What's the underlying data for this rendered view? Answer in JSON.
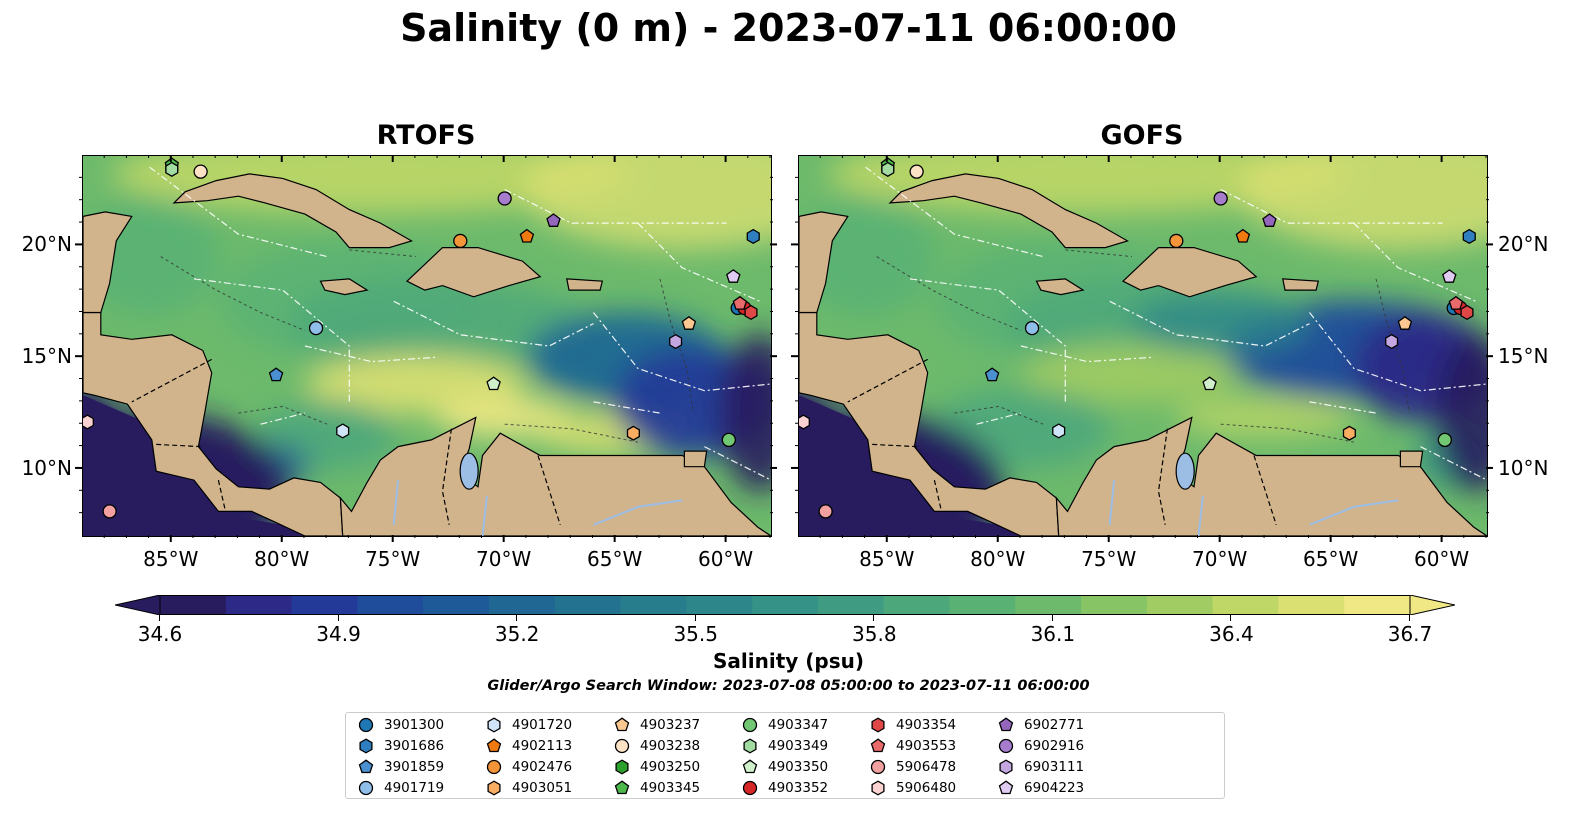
{
  "title": "Salinity (0 m) - 2023-07-11 06:00:00",
  "panels": [
    {
      "title": "RTOFS",
      "variant": "rtofs"
    },
    {
      "title": "GOFS",
      "variant": "gofs"
    }
  ],
  "axes": {
    "lon_ticks": [
      "85°W",
      "80°W",
      "75°W",
      "70°W",
      "65°W",
      "60°W"
    ],
    "lon_values": [
      -85,
      -80,
      -75,
      -70,
      -65,
      -60
    ],
    "lat_ticks": [
      "20°N",
      "15°N",
      "10°N"
    ],
    "lat_values": [
      20,
      15,
      10
    ],
    "lon_range": [
      -89,
      -58
    ],
    "lat_range": [
      7,
      24
    ]
  },
  "colorbar": {
    "ticks": [
      "34.6",
      "34.9",
      "35.2",
      "35.5",
      "35.8",
      "36.1",
      "36.4",
      "36.7"
    ],
    "vmin": 34.6,
    "vmax": 36.7,
    "label": "Salinity (psu)",
    "extend": "both",
    "colors": [
      "#281c5e",
      "#2c2a86",
      "#243a98",
      "#1f4c9b",
      "#1f5a98",
      "#206793",
      "#23728f",
      "#277d8c",
      "#2d878a",
      "#349287",
      "#3f9c82",
      "#4ca77b",
      "#59b174",
      "#6dba6c",
      "#86c466",
      "#a1cc63",
      "#bfd766",
      "#dbe072",
      "#f0e884"
    ]
  },
  "search_window": "Glider/Argo Search Window: 2023-07-08 05:00:00 to 2023-07-11 06:00:00",
  "legend": [
    {
      "label": "3901300",
      "shape": "circle",
      "color": "#1f77b4"
    },
    {
      "label": "3901686",
      "shape": "hexagon",
      "color": "#2f7fc0"
    },
    {
      "label": "3901859",
      "shape": "pentagon",
      "color": "#4a90d0"
    },
    {
      "label": "4901719",
      "shape": "circle",
      "color": "#8fbfe8"
    },
    {
      "label": "4901720",
      "shape": "hexagon",
      "color": "#cfe4f6"
    },
    {
      "label": "4902113",
      "shape": "pentagon",
      "color": "#f07a10"
    },
    {
      "label": "4902476",
      "shape": "circle",
      "color": "#f5953a"
    },
    {
      "label": "4903051",
      "shape": "hexagon",
      "color": "#f8ad62"
    },
    {
      "label": "4903237",
      "shape": "pentagon",
      "color": "#fbc892"
    },
    {
      "label": "4903238",
      "shape": "circle",
      "color": "#fde2c6"
    },
    {
      "label": "4903250",
      "shape": "hexagon",
      "color": "#2ca02c"
    },
    {
      "label": "4903345",
      "shape": "pentagon",
      "color": "#4cb84c"
    },
    {
      "label": "4903347",
      "shape": "circle",
      "color": "#72c872"
    },
    {
      "label": "4903349",
      "shape": "hexagon",
      "color": "#a3dca3"
    },
    {
      "label": "4903350",
      "shape": "pentagon",
      "color": "#d0f0cc"
    },
    {
      "label": "4903352",
      "shape": "circle",
      "color": "#d62728"
    },
    {
      "label": "4903354",
      "shape": "hexagon",
      "color": "#e04848"
    },
    {
      "label": "4903553",
      "shape": "pentagon",
      "color": "#e86a6a"
    },
    {
      "label": "5906478",
      "shape": "circle",
      "color": "#f2a0a0"
    },
    {
      "label": "5906480",
      "shape": "hexagon",
      "color": "#fad2d2"
    },
    {
      "label": "6902771",
      "shape": "pentagon",
      "color": "#9467bd"
    },
    {
      "label": "6902916",
      "shape": "circle",
      "color": "#a57dcc"
    },
    {
      "label": "6903111",
      "shape": "hexagon",
      "color": "#c4a6e0"
    },
    {
      "label": "6904223",
      "shape": "pentagon",
      "color": "#e0ccf2"
    }
  ],
  "floats": [
    {
      "id": "3901300",
      "lon": -59.5,
      "lat": 17.2
    },
    {
      "id": "3901686",
      "lon": -58.8,
      "lat": 20.4
    },
    {
      "id": "3901859",
      "lon": -80.3,
      "lat": 14.2
    },
    {
      "id": "4901719",
      "lon": -78.5,
      "lat": 16.3
    },
    {
      "id": "4901720",
      "lon": -77.3,
      "lat": 11.7
    },
    {
      "id": "4902113",
      "lon": -69.0,
      "lat": 20.4
    },
    {
      "id": "4902476",
      "lon": -72.0,
      "lat": 20.2
    },
    {
      "id": "4903051",
      "lon": -64.2,
      "lat": 11.6
    },
    {
      "id": "4903237",
      "lon": -61.7,
      "lat": 16.5
    },
    {
      "id": "4903238",
      "lon": -83.7,
      "lat": 23.3
    },
    {
      "id": "4903250",
      "lon": -85.0,
      "lat": 23.5
    },
    {
      "id": "4903345",
      "lon": -85.0,
      "lat": 23.6
    },
    {
      "id": "4903347",
      "lon": -59.9,
      "lat": 11.3
    },
    {
      "id": "4903349",
      "lon": -85.0,
      "lat": 23.4
    },
    {
      "id": "4903350",
      "lon": -70.5,
      "lat": 13.8
    },
    {
      "id": "4903352",
      "lon": -59.2,
      "lat": 17.2
    },
    {
      "id": "4903354",
      "lon": -58.9,
      "lat": 17.0
    },
    {
      "id": "4903553",
      "lon": -59.4,
      "lat": 17.4
    },
    {
      "id": "5906478",
      "lon": -87.8,
      "lat": 8.1
    },
    {
      "id": "5906480",
      "lon": -88.8,
      "lat": 12.1
    },
    {
      "id": "6902771",
      "lon": -67.8,
      "lat": 21.1
    },
    {
      "id": "6902916",
      "lon": -70.0,
      "lat": 22.1
    },
    {
      "id": "6903111",
      "lon": -62.3,
      "lat": 15.7
    },
    {
      "id": "6904223",
      "lon": -59.7,
      "lat": 18.6
    }
  ]
}
